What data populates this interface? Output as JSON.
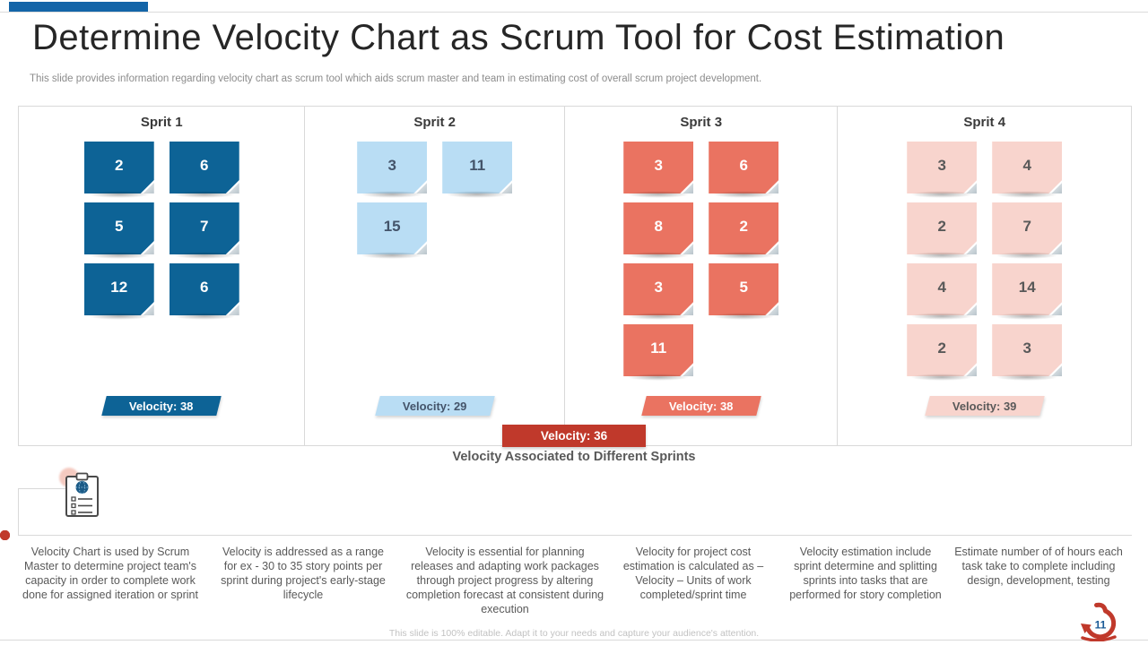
{
  "slide": {
    "title": "Determine Velocity Chart as Scrum Tool for Cost Estimation",
    "subtitle": "This slide provides information regarding velocity chart as scrum tool which aids scrum master and team in estimating cost of overall scrum project development.",
    "caption": "Velocity Associated to Different Sprints",
    "footer": "This slide is 100% editable. Adapt it to your needs and capture your audience's attention.",
    "page_number": "11"
  },
  "velocity_label_prefix": "Velocity:",
  "chart_data": {
    "type": "table",
    "title": "Velocity Associated to Different Sprints",
    "categories": [
      "Sprit 1",
      "Sprit 2",
      "Sprit 3",
      "Sprit 4"
    ],
    "sprints": [
      {
        "name": "Sprit 1",
        "story_points": [
          2,
          6,
          5,
          7,
          12,
          6
        ],
        "velocity": 38,
        "note_color": "#0d6396",
        "note_text_color": "#ffffff",
        "label_color": "#0d6396",
        "label_text_color": "#ffffff"
      },
      {
        "name": "Sprit 2",
        "story_points": [
          3,
          11,
          15
        ],
        "velocity": 29,
        "note_color": "#b9ddf4",
        "note_text_color": "#44546a",
        "label_color": "#b9ddf4",
        "label_text_color": "#44546a"
      },
      {
        "name": "Sprit 3",
        "story_points": [
          3,
          6,
          8,
          2,
          3,
          5,
          11
        ],
        "velocity": 38,
        "note_color": "#ea7361",
        "note_text_color": "#ffffff",
        "label_color": "#ea7361",
        "label_text_color": "#ffffff"
      },
      {
        "name": "Sprit 4",
        "story_points": [
          3,
          4,
          2,
          7,
          4,
          14,
          2,
          3
        ],
        "velocity": 39,
        "note_color": "#f8d4cd",
        "note_text_color": "#595959",
        "label_color": "#f8d4cd",
        "label_text_color": "#595959"
      }
    ],
    "combined_velocity": 36,
    "combined_velocity_color": "#c0392b"
  },
  "timeline_notes": [
    "Velocity Chart is used by Scrum Master to determine project team's capacity in order to complete work done for assigned iteration or sprint",
    "Velocity is addressed as a range for ex - 30 to 35 story points per sprint during project's early-stage lifecycle",
    "Velocity is essential for planning releases and adapting work packages through project progress by altering completion forecast at consistent during execution",
    "Velocity for project cost estimation is calculated as – Velocity – Units of work completed/sprint time",
    "Velocity estimation include sprint determine and splitting sprints into tasks that are performed for story completion",
    "Estimate number of of hours each task take to complete including design, development, testing"
  ],
  "icons": {
    "clipboard": "clipboard-checklist-icon",
    "sprint_loop": "sprint-loop-icon"
  },
  "colors": {
    "accent_blue": "#1465a8",
    "timeline_dot": "#c0392b",
    "border_gray": "#d9d9d9"
  }
}
